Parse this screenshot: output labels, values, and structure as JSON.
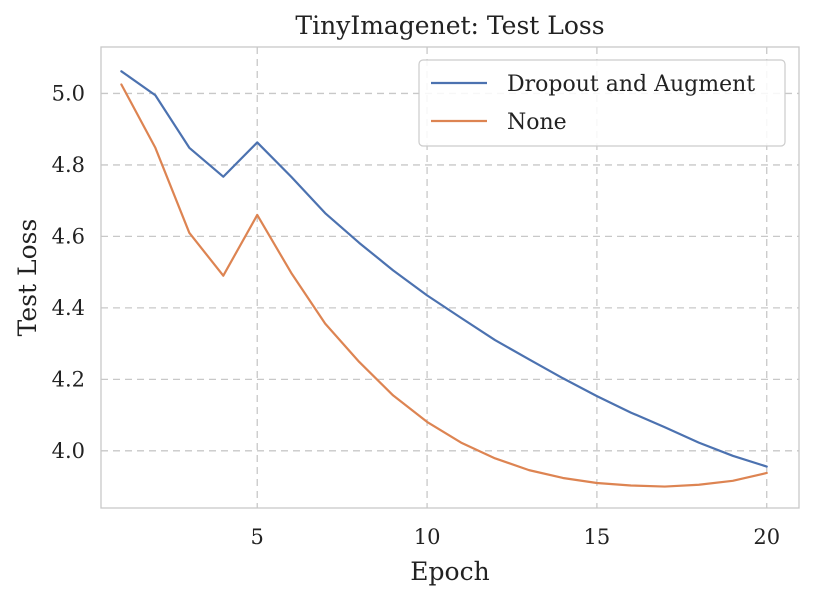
{
  "chart_data": {
    "type": "line",
    "title": "TinyImagenet: Test Loss",
    "xlabel": "Epoch",
    "ylabel": "Test Loss",
    "xlim": [
      0.4,
      20.95
    ],
    "ylim": [
      3.84,
      5.13
    ],
    "xticks": [
      5,
      10,
      15,
      20
    ],
    "yticks": [
      4.0,
      4.2,
      4.4,
      4.6,
      4.8,
      5.0
    ],
    "grid": true,
    "legend_position": "top-right",
    "x": [
      1,
      2,
      3,
      4,
      5,
      6,
      7,
      8,
      9,
      10,
      11,
      12,
      13,
      14,
      15,
      16,
      17,
      18,
      19,
      20
    ],
    "series": [
      {
        "name": "Dropout and Augment",
        "color": "#4c72b0",
        "values": [
          5.062,
          4.995,
          4.848,
          4.767,
          4.863,
          4.767,
          4.665,
          4.582,
          4.505,
          4.435,
          4.372,
          4.31,
          4.256,
          4.203,
          4.153,
          4.107,
          4.066,
          4.023,
          3.986,
          3.956
        ]
      },
      {
        "name": "None",
        "color": "#dd8452",
        "values": [
          5.025,
          4.848,
          4.61,
          4.49,
          4.66,
          4.498,
          4.356,
          4.249,
          4.155,
          4.081,
          4.023,
          3.979,
          3.946,
          3.924,
          3.91,
          3.903,
          3.9,
          3.905,
          3.916,
          3.938
        ]
      }
    ]
  }
}
